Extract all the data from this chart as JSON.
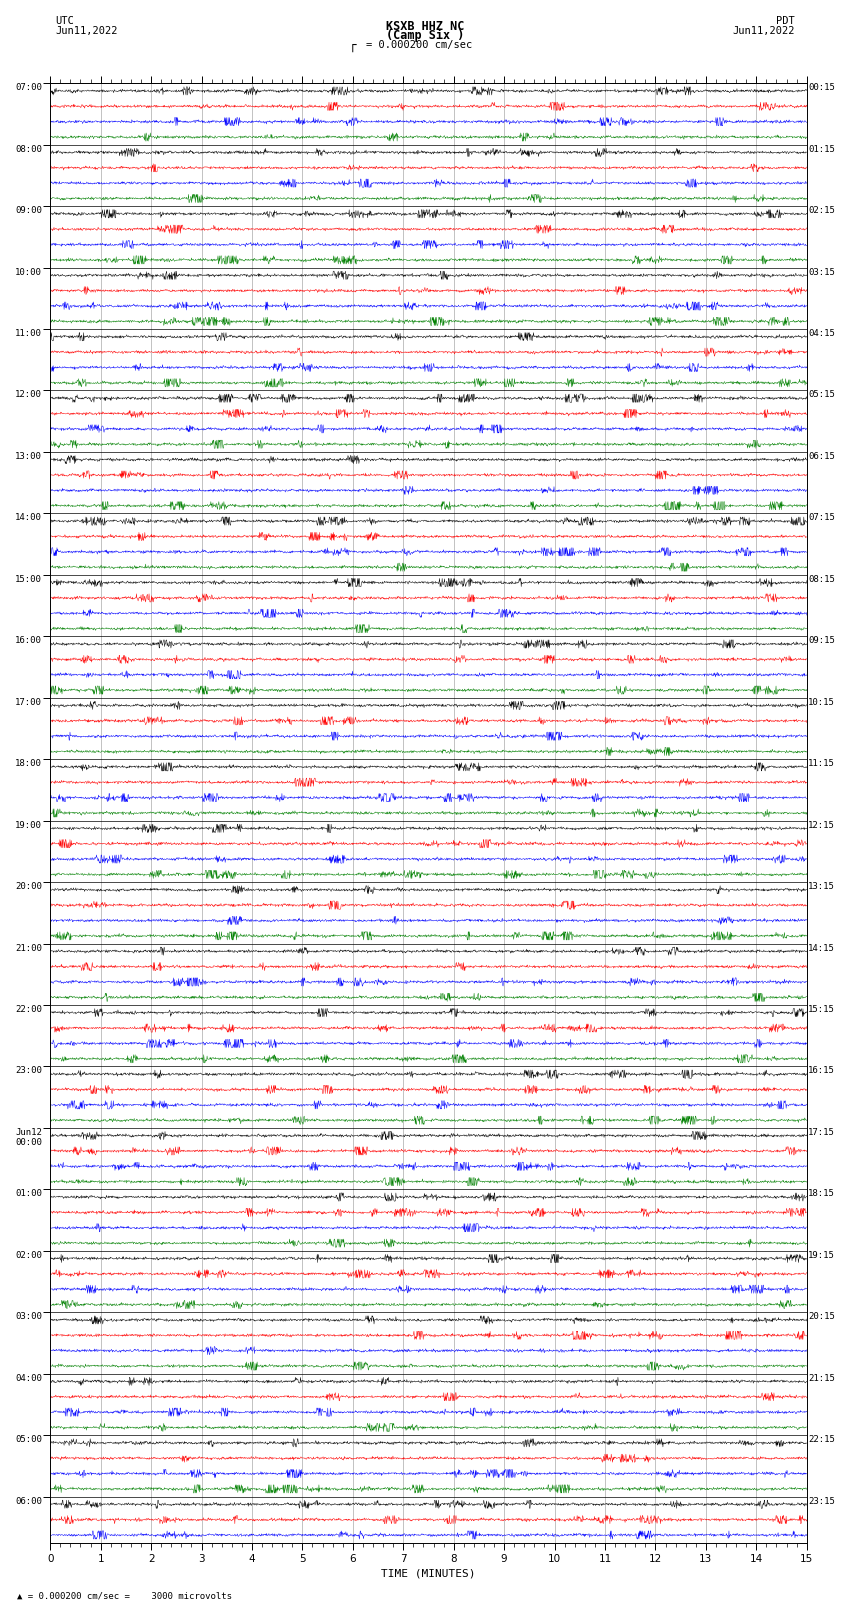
{
  "title_line1": "KSXB HHZ NC",
  "title_line2": "(Camp Six )",
  "scale_label": "= 0.000200 cm/sec",
  "bottom_label": "= 0.000200 cm/sec =    3000 microvolts",
  "xlabel": "TIME (MINUTES)",
  "xmin": 0,
  "xmax": 15,
  "left_times_hour": [
    "07:00",
    "08:00",
    "09:00",
    "10:00",
    "11:00",
    "12:00",
    "13:00",
    "14:00",
    "15:00",
    "16:00",
    "17:00",
    "18:00",
    "19:00",
    "20:00",
    "21:00",
    "22:00",
    "23:00",
    "Jun12\n00:00",
    "01:00",
    "02:00",
    "03:00",
    "04:00",
    "05:00",
    "06:00"
  ],
  "right_times_hour": [
    "00:15",
    "01:15",
    "02:15",
    "03:15",
    "04:15",
    "05:15",
    "06:15",
    "07:15",
    "08:15",
    "09:15",
    "10:15",
    "11:15",
    "12:15",
    "13:15",
    "14:15",
    "15:15",
    "16:15",
    "17:15",
    "18:15",
    "19:15",
    "20:15",
    "21:15",
    "22:15",
    "23:15"
  ],
  "trace_colors": [
    "black",
    "red",
    "blue",
    "green"
  ],
  "bg_color": "white",
  "n_full_hours": 23,
  "n_rows_last": 3,
  "points_per_trace": 1800,
  "amplitude_scale": 0.28,
  "noise_seed": 42,
  "grid_color": "#aaaaaa",
  "separator_color": "black"
}
